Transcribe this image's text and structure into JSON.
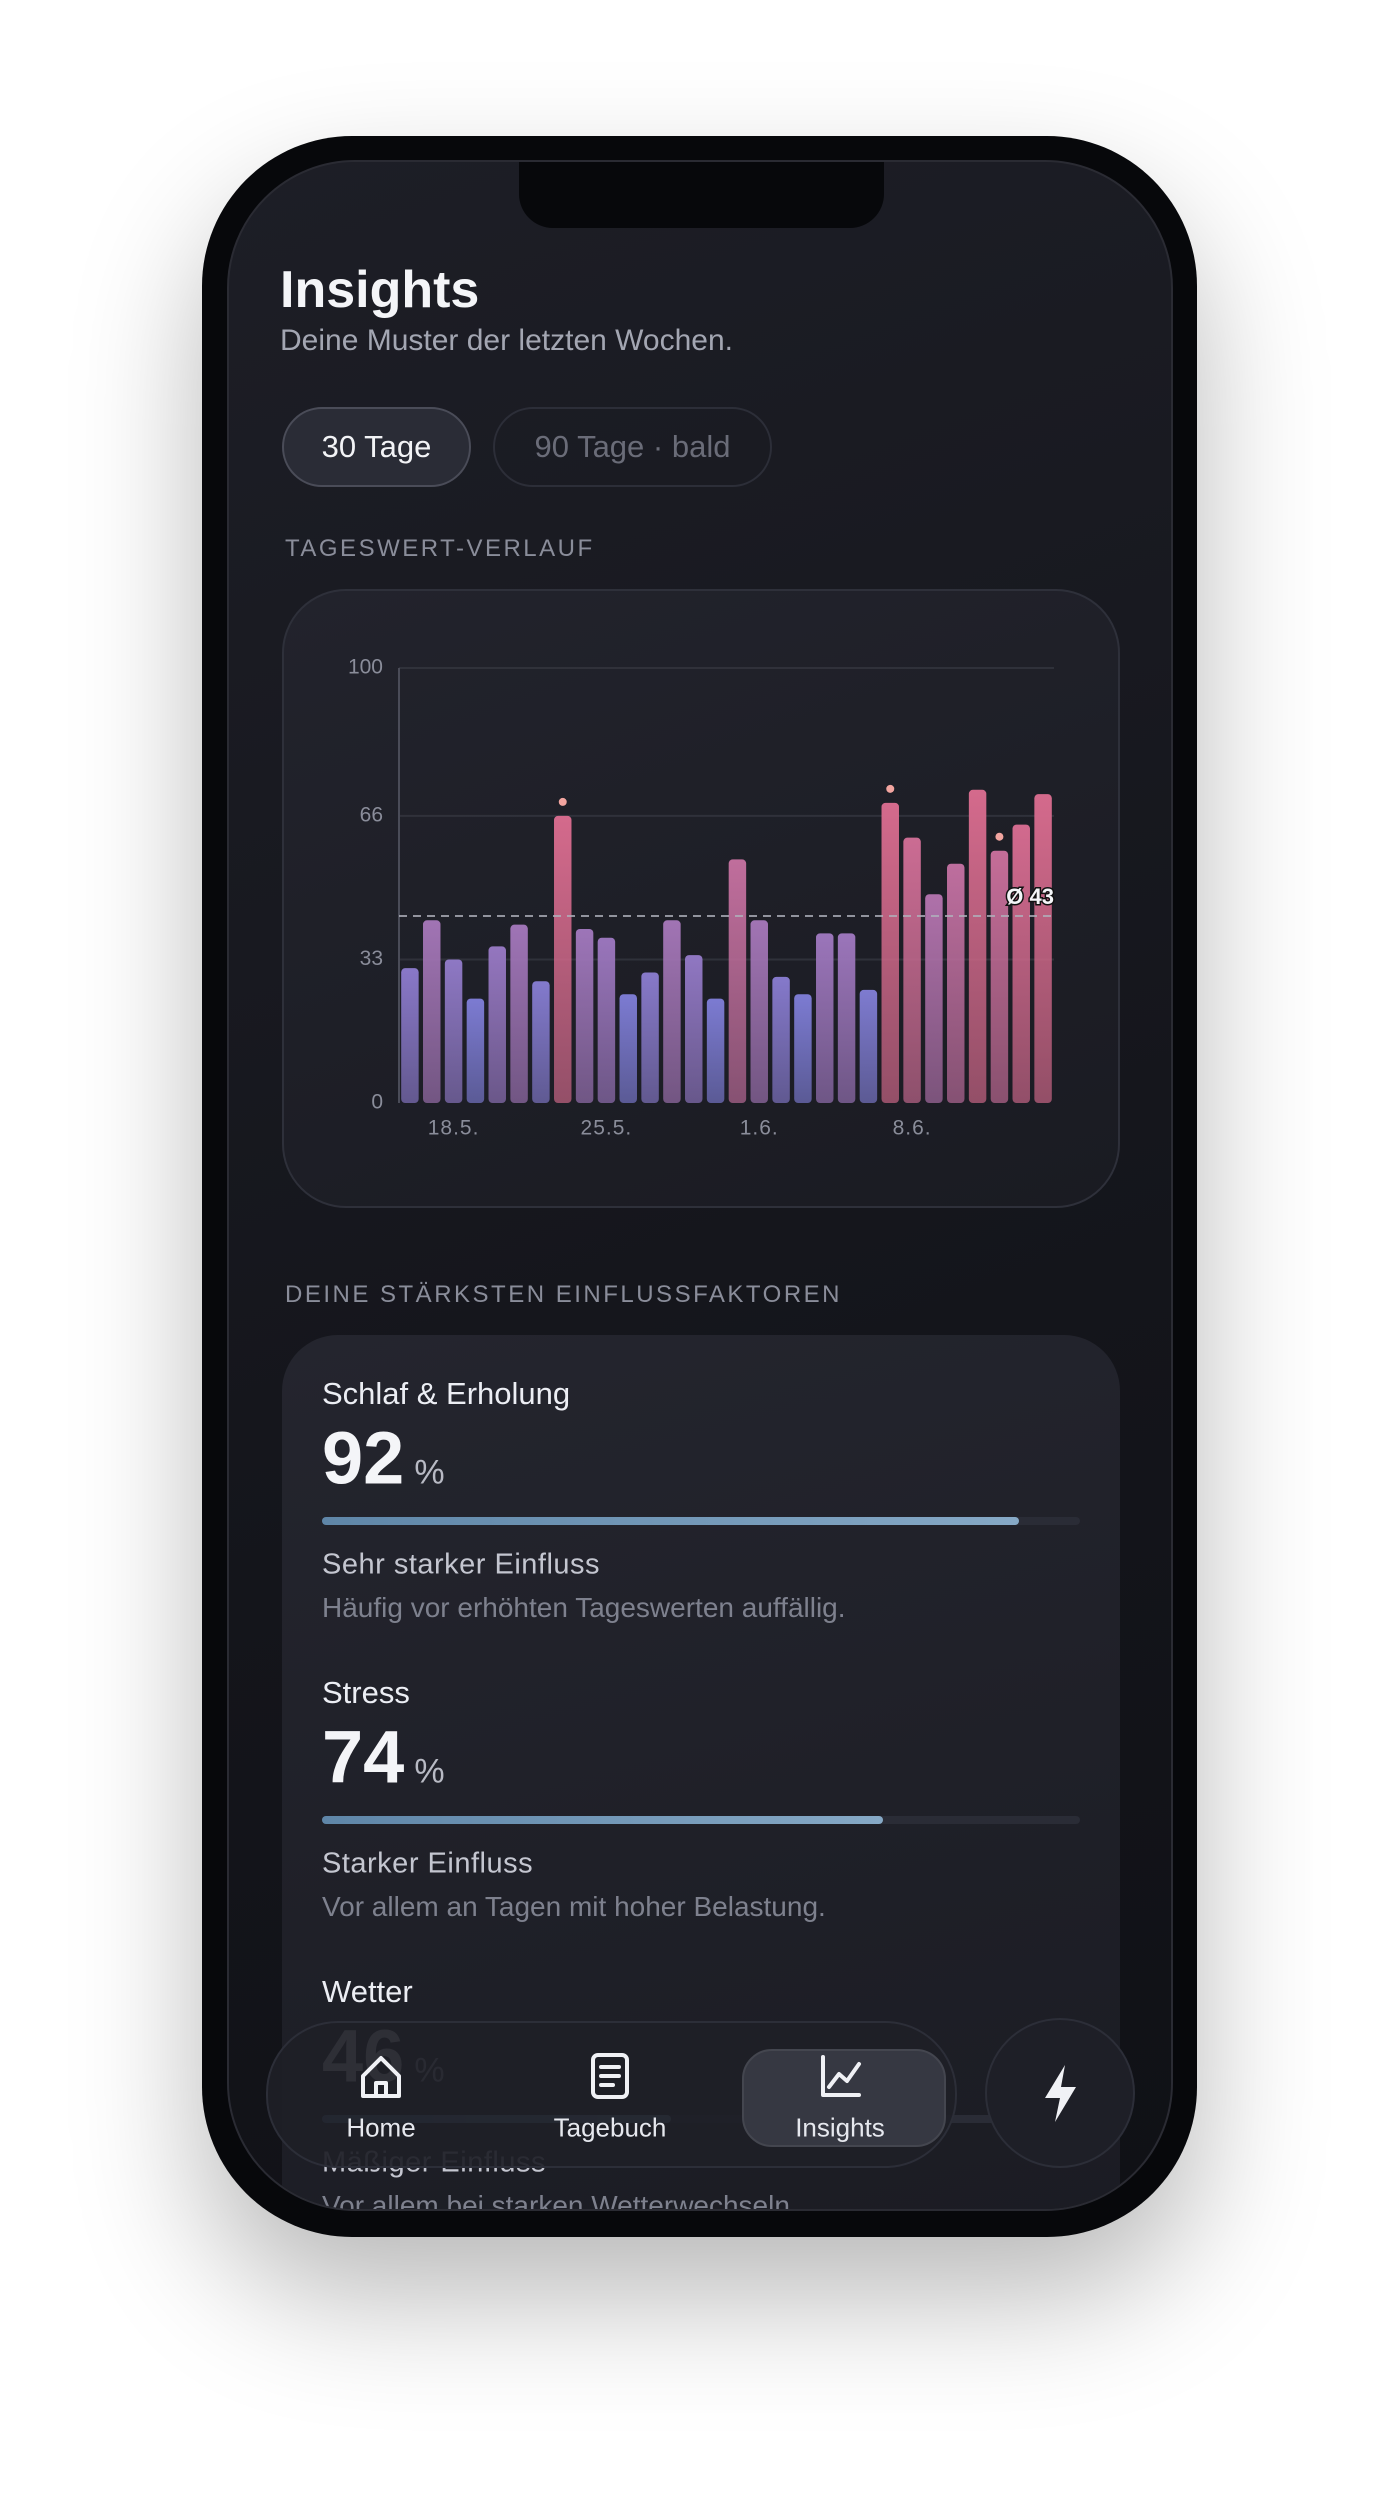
{
  "header": {
    "title": "Insights",
    "subtitle": "Deine Muster der letzten Wochen."
  },
  "tabs": [
    {
      "label": "30 Tage",
      "active": true
    },
    {
      "label": "90 Tage · bald",
      "active": false
    }
  ],
  "chart_section_title": "TAGESWERT-VERLAUF",
  "chart_data": {
    "type": "bar",
    "categories": [
      null,
      null,
      "18.5.",
      null,
      null,
      null,
      null,
      null,
      null,
      "25.5.",
      null,
      null,
      null,
      null,
      null,
      null,
      "1.6.",
      null,
      null,
      null,
      null,
      null,
      null,
      "8.6.",
      null,
      null,
      null,
      null,
      null,
      null
    ],
    "values": [
      31,
      42,
      33,
      24,
      36,
      41,
      28,
      66,
      40,
      38,
      25,
      30,
      42,
      34,
      24,
      56,
      42,
      29,
      25,
      39,
      39,
      26,
      69,
      61,
      48,
      55,
      72,
      58,
      64,
      71
    ],
    "highlights": [
      7,
      22,
      27
    ],
    "colors": {
      "low": "#7c7bd2",
      "high": "#d46a8c"
    },
    "ylim": [
      0,
      100
    ],
    "yticks": [
      0,
      33,
      66,
      100
    ],
    "average": {
      "value": 43,
      "label": "Ø 43"
    }
  },
  "factors_title": "DEINE STÄRKSTEN EINFLUSSFAKTOREN",
  "factors": [
    {
      "name": "Schlaf & Erholung",
      "value": 92,
      "unit": "%",
      "strength": "Sehr starker Einfluss",
      "description": "Häufig vor erhöhten Tageswerten auffällig."
    },
    {
      "name": "Stress",
      "value": 74,
      "unit": "%",
      "strength": "Starker Einfluss",
      "description": "Vor allem an Tagen mit hoher Belastung."
    },
    {
      "name": "Wetter",
      "value": 46,
      "unit": "%",
      "strength": "Mäßiger Einfluss",
      "description": "Vor allem bei starken Wetterwechseln."
    }
  ],
  "nav": [
    {
      "label": "Home"
    },
    {
      "label": "Tagebuch"
    },
    {
      "label": "Insights",
      "active": true
    }
  ]
}
